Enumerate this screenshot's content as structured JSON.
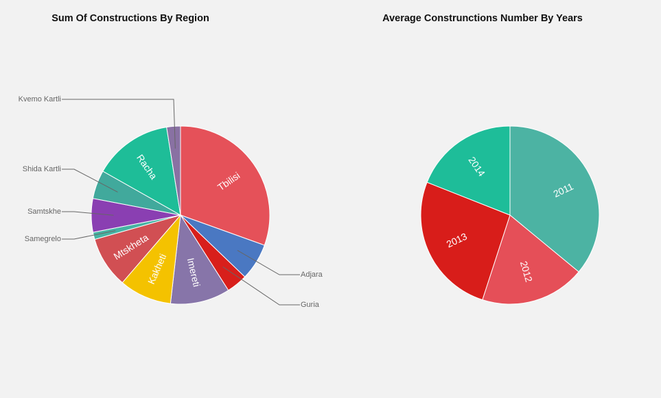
{
  "chart_data": [
    {
      "type": "pie",
      "title": "Sum Of Constructions By Region",
      "slices": [
        {
          "label": "Tbilisi",
          "value": 30.5,
          "color": "#e55159",
          "label_mode": "inside"
        },
        {
          "label": "Adjara",
          "value": 6.7,
          "color": "#4a78c2",
          "label_mode": "outside"
        },
        {
          "label": "Guria",
          "value": 3.8,
          "color": "#d81f1b",
          "label_mode": "outside"
        },
        {
          "label": "Imereti",
          "value": 10.8,
          "color": "#8775a9",
          "label_mode": "inside"
        },
        {
          "label": "Kakheti",
          "value": 9.5,
          "color": "#f4c200",
          "label_mode": "inside"
        },
        {
          "label": "Mtskheta",
          "value": 9.3,
          "color": "#d14f53",
          "label_mode": "inside"
        },
        {
          "label": "Samegrelo",
          "value": 1.3,
          "color": "#46b3a3",
          "label_mode": "outside"
        },
        {
          "label": "Samtskhe",
          "value": 6.1,
          "color": "#8a3fb2",
          "label_mode": "outside"
        },
        {
          "label": "Shida Kartli",
          "value": 5.2,
          "color": "#41a99c",
          "label_mode": "outside"
        },
        {
          "label": "Racha",
          "value": 14.3,
          "color": "#1ebd98",
          "label_mode": "inside"
        },
        {
          "label": "Kvemo Kartli",
          "value": 2.5,
          "color": "#8971a3",
          "label_mode": "outside"
        }
      ]
    },
    {
      "type": "pie",
      "title": "Average Construnctions Number By Years",
      "slices": [
        {
          "label": "2011",
          "value": 36,
          "color": "#4cb3a3",
          "label_mode": "inside"
        },
        {
          "label": "2012",
          "value": 19,
          "color": "#e54f58",
          "label_mode": "inside"
        },
        {
          "label": "2013",
          "value": 26,
          "color": "#d81d1a",
          "label_mode": "inside"
        },
        {
          "label": "2014",
          "value": 19,
          "color": "#1ebd99",
          "label_mode": "inside"
        }
      ]
    }
  ]
}
